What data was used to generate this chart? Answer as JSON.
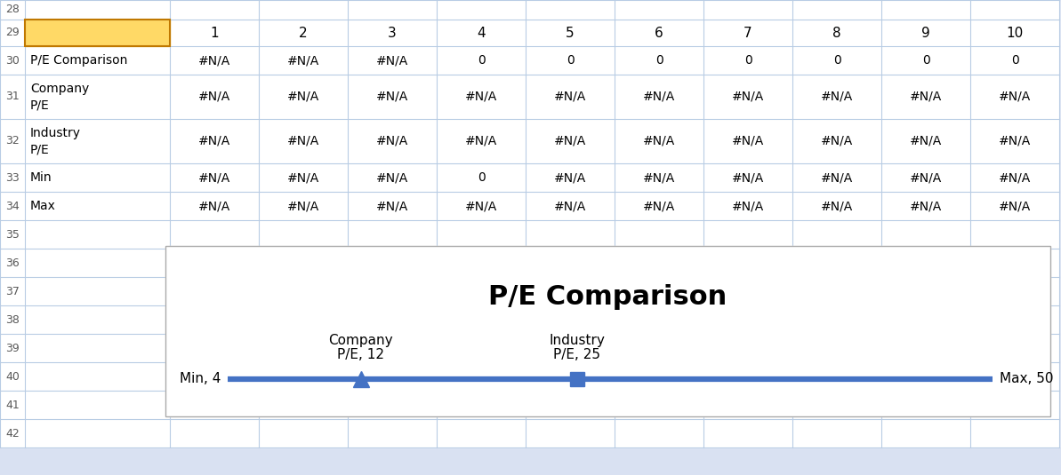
{
  "chart_title": "P/E Comparison",
  "min_val": 4,
  "max_val": 50,
  "company_pe": 12,
  "industry_pe": 25,
  "col_headers": [
    "1",
    "2",
    "3",
    "4",
    "5",
    "6",
    "7",
    "8",
    "9",
    "10"
  ],
  "row30_vals": [
    "#N/A",
    "#N/A",
    "#N/A",
    "0",
    "0",
    "0",
    "0",
    "0",
    "0",
    "0"
  ],
  "row31_vals": [
    "#N/A",
    "#N/A",
    "#N/A",
    "#N/A",
    "#N/A",
    "#N/A",
    "#N/A",
    "#N/A",
    "#N/A",
    "#N/A"
  ],
  "row32_vals": [
    "#N/A",
    "#N/A",
    "#N/A",
    "#N/A",
    "#N/A",
    "#N/A",
    "#N/A",
    "#N/A",
    "#N/A",
    "#N/A"
  ],
  "row33_vals": [
    "#N/A",
    "#N/A",
    "#N/A",
    "0",
    "#N/A",
    "#N/A",
    "#N/A",
    "#N/A",
    "#N/A",
    "#N/A"
  ],
  "row34_vals": [
    "#N/A",
    "#N/A",
    "#N/A",
    "#N/A",
    "#N/A",
    "#N/A",
    "#N/A",
    "#N/A",
    "#N/A",
    "#N/A"
  ],
  "line_color": "#4472C4",
  "bg_color": "#D9E1F2",
  "cell_bg": "#FFFFFF",
  "grid_color": "#B8CCE4",
  "row29_bg": "#FFD966",
  "row29_border": "#C07800",
  "row_nums": [
    28,
    29,
    30,
    31,
    32,
    33,
    34,
    35,
    36,
    37,
    38,
    39,
    40,
    41,
    42
  ],
  "fig_width": 11.93,
  "fig_height": 5.35,
  "dpi": 100
}
